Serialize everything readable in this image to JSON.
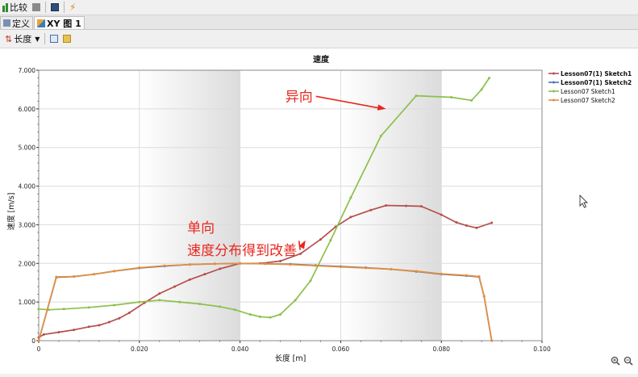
{
  "toolbar": {
    "compare_label": "比较"
  },
  "tabs": [
    {
      "label": "定义"
    },
    {
      "label": "XY 图 1"
    }
  ],
  "xaxis_selector": {
    "label": "长度"
  },
  "chart_data": {
    "type": "line",
    "title": "速度",
    "xlabel": "长度 [m]",
    "ylabel": "速度 [m/s]",
    "xlim": [
      0,
      0.1
    ],
    "ylim": [
      0,
      7
    ],
    "xticks": [
      "0",
      "0.020",
      "0.040",
      "0.060",
      "0.080",
      "0.100"
    ],
    "yticks": [
      "0",
      "1.000",
      "2.000",
      "3.000",
      "4.000",
      "5.000",
      "6.000",
      "7.000"
    ],
    "legend_position": "right",
    "series": [
      {
        "name": "Lesson07(1) Sketch1",
        "color": "#b5504a",
        "x": [
          0,
          0.001,
          0.004,
          0.007,
          0.01,
          0.012,
          0.014,
          0.016,
          0.018,
          0.021,
          0.024,
          0.027,
          0.03,
          0.033,
          0.036,
          0.04,
          0.044,
          0.048,
          0.052,
          0.056,
          0.059,
          0.062,
          0.066,
          0.069,
          0.073,
          0.076,
          0.08,
          0.083,
          0.085,
          0.087,
          0.09
        ],
        "y": [
          0.08,
          0.16,
          0.22,
          0.28,
          0.36,
          0.4,
          0.48,
          0.58,
          0.72,
          0.98,
          1.22,
          1.4,
          1.58,
          1.72,
          1.86,
          2.0,
          2.0,
          2.06,
          2.25,
          2.62,
          2.95,
          3.2,
          3.38,
          3.5,
          3.49,
          3.48,
          3.26,
          3.06,
          2.98,
          2.92,
          3.05
        ]
      },
      {
        "name": "Lesson07(1) Sketch2",
        "color": "#4a74ad",
        "x": [
          0,
          0.0035,
          0.007,
          0.011,
          0.015,
          0.02,
          0.025,
          0.03,
          0.035,
          0.04,
          0.045,
          0.05,
          0.055,
          0.06,
          0.065,
          0.07,
          0.075,
          0.08,
          0.085,
          0.0875,
          0.0885,
          0.09
        ],
        "y": [
          0,
          1.64,
          1.66,
          1.72,
          1.8,
          1.88,
          1.93,
          1.97,
          1.99,
          2.0,
          1.99,
          1.98,
          1.95,
          1.92,
          1.89,
          1.85,
          1.79,
          1.72,
          1.68,
          1.65,
          1.15,
          0
        ]
      },
      {
        "name": "Lesson07 Sketch1",
        "color": "#8cc04b",
        "x": [
          0,
          0.002,
          0.005,
          0.01,
          0.015,
          0.02,
          0.024,
          0.028,
          0.032,
          0.036,
          0.039,
          0.042,
          0.044,
          0.046,
          0.048,
          0.051,
          0.054,
          0.058,
          0.062,
          0.068,
          0.075,
          0.082,
          0.086,
          0.088,
          0.0895
        ],
        "y": [
          0.82,
          0.8,
          0.82,
          0.86,
          0.92,
          1.0,
          1.05,
          1.0,
          0.95,
          0.88,
          0.8,
          0.68,
          0.62,
          0.6,
          0.68,
          1.05,
          1.55,
          2.6,
          3.7,
          5.3,
          6.34,
          6.3,
          6.22,
          6.5,
          6.8
        ]
      },
      {
        "name": "Lesson07 Sketch2",
        "color": "#e58e3c",
        "x": [
          0,
          0.0035,
          0.007,
          0.011,
          0.015,
          0.02,
          0.025,
          0.03,
          0.035,
          0.04,
          0.045,
          0.05,
          0.055,
          0.06,
          0.065,
          0.07,
          0.075,
          0.08,
          0.085,
          0.0875,
          0.0885,
          0.09
        ],
        "y": [
          0,
          1.65,
          1.66,
          1.72,
          1.8,
          1.89,
          1.94,
          1.97,
          1.99,
          2.0,
          1.99,
          1.97,
          1.94,
          1.91,
          1.88,
          1.85,
          1.8,
          1.73,
          1.69,
          1.66,
          1.15,
          0
        ]
      }
    ],
    "annotations": [
      {
        "text": "异向",
        "at": [
          0.049,
          6.2
        ],
        "arrow_to": [
          0.069,
          6.0
        ]
      },
      {
        "text": "单向",
        "at": [
          0.0295,
          2.8
        ]
      },
      {
        "text": "速度分布得到改善",
        "at": [
          0.0295,
          2.22
        ],
        "arrow_to": [
          0.053,
          2.6
        ]
      }
    ]
  }
}
